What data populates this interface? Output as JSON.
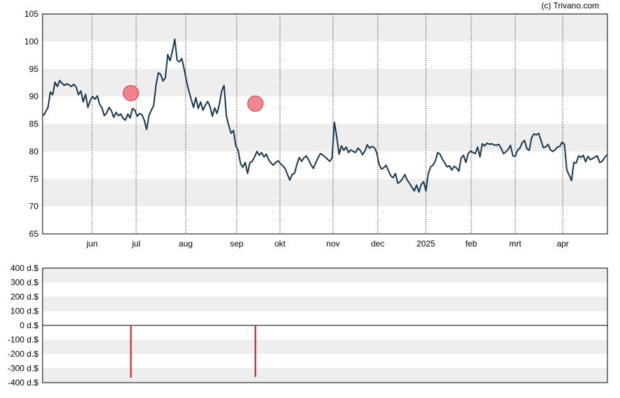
{
  "copyright": "(c) Trivano.com",
  "colors": {
    "price_line": "#17364f",
    "band": "#eeeeee",
    "marker_fill": "#f07079",
    "marker_stroke": "#c83c48",
    "trade_bar": "#dd1111",
    "axis": "#000000"
  },
  "chart_data": [
    {
      "type": "line",
      "title": "",
      "ylim": [
        65,
        105
      ],
      "y_ticks": [
        "65",
        "70",
        "75",
        "80",
        "85",
        "90",
        "95",
        "100",
        "105"
      ],
      "x_ticks": [
        "jun",
        "jul",
        "aug",
        "sep",
        "okt",
        "nov",
        "dec",
        "2025",
        "feb",
        "mrt",
        "apr"
      ],
      "grid": "vertical dotted lines at month starts, alternating horizontal bands",
      "series": [
        {
          "values": [
            86.5,
            87.2,
            88.0,
            90.8,
            90.3,
            92.6,
            91.8,
            92.9,
            92.4,
            92.0,
            92.3,
            92.1,
            91.8,
            92.2,
            91.7,
            90.3,
            91.0,
            89.0,
            90.4,
            88.0,
            89.3,
            90.0,
            89.5,
            90.1,
            88.6,
            87.9,
            86.5,
            87.0,
            88.0,
            87.4,
            86.2,
            87.1,
            86.5,
            86.8,
            86.0,
            85.7,
            86.8,
            86.1,
            87.8,
            87.5,
            86.4,
            86.9,
            86.7,
            85.7,
            84.0,
            86.5,
            87.5,
            88.3,
            92.0,
            94.3,
            94.0,
            92.8,
            93.4,
            97.6,
            96.5,
            98.2,
            100.4,
            96.6,
            96.3,
            96.9,
            95.0,
            92.8,
            91.0,
            89.5,
            88.0,
            89.8,
            87.8,
            89.0,
            87.5,
            88.4,
            89.1,
            88.2,
            86.4,
            87.9,
            86.9,
            88.6,
            91.0,
            92.0,
            86.4,
            84.7,
            83.3,
            83.8,
            81.0,
            80.2,
            77.8,
            77.1,
            78.0,
            76.0,
            78.0,
            78.2,
            79.0,
            80.0,
            79.3,
            79.8,
            79.0,
            79.5,
            78.5,
            77.9,
            77.5,
            78.0,
            78.3,
            77.8,
            77.4,
            76.9,
            75.8,
            74.8,
            75.8,
            76.0,
            77.6,
            78.9,
            78.2,
            78.8,
            79.2,
            78.5,
            77.6,
            76.9,
            77.9,
            78.8,
            79.6,
            79.4,
            79.0,
            78.6,
            78.2,
            78.8,
            85.3,
            82.6,
            79.5,
            81.0,
            80.2,
            80.8,
            79.8,
            80.3,
            80.0,
            79.8,
            80.6,
            80.2,
            79.4,
            80.1,
            81.2,
            80.6,
            80.9,
            80.7,
            79.8,
            77.7,
            76.8,
            77.0,
            77.5,
            76.5,
            75.6,
            75.2,
            76.0,
            74.2,
            74.5,
            75.0,
            75.8,
            74.8,
            74.2,
            73.5,
            72.8,
            73.9,
            72.6,
            74.0,
            74.5,
            72.8,
            76.0,
            77.2,
            77.5,
            78.3,
            79.8,
            79.5,
            78.6,
            77.9,
            77.2,
            77.4,
            76.6,
            77.3,
            77.0,
            76.4,
            78.8,
            79.3,
            78.0,
            79.6,
            80.1,
            79.8,
            79.6,
            80.8,
            79.0,
            81.4,
            81.0,
            81.5,
            81.3,
            81.4,
            81.2,
            81.1,
            81.3,
            80.6,
            79.6,
            79.9,
            80.4,
            81.1,
            79.2,
            79.1,
            80.2,
            80.6,
            81.6,
            82.0,
            80.5,
            80.2,
            82.5,
            83.2,
            83.0,
            83.3,
            82.0,
            80.7,
            80.8,
            81.3,
            80.3,
            80.0,
            80.3,
            80.8,
            80.9,
            81.7,
            81.3,
            76.6,
            75.7,
            74.7,
            78.0,
            77.9,
            79.2,
            78.9,
            79.3,
            78.1,
            79.1,
            78.5,
            78.7,
            79.0,
            79.2,
            78.0,
            78.2,
            78.8,
            79.4
          ]
        }
      ],
      "markers": [
        {
          "month_position": 0.88,
          "value": 90.6
        },
        {
          "month_position": 3.43,
          "value": 88.7
        }
      ]
    },
    {
      "type": "bar",
      "title": "",
      "ylim": [
        -400,
        400
      ],
      "y_ticks": [
        "400 d.$",
        "300 d.$",
        "200 d.$",
        "100 d.$",
        "0 d.$",
        "-100 d.$",
        "-200 d.$",
        "-300 d.$",
        "-400 d.$"
      ],
      "bars": [
        {
          "month_position": 0.88,
          "value": -365
        },
        {
          "month_position": 3.43,
          "value": -360
        }
      ]
    }
  ]
}
